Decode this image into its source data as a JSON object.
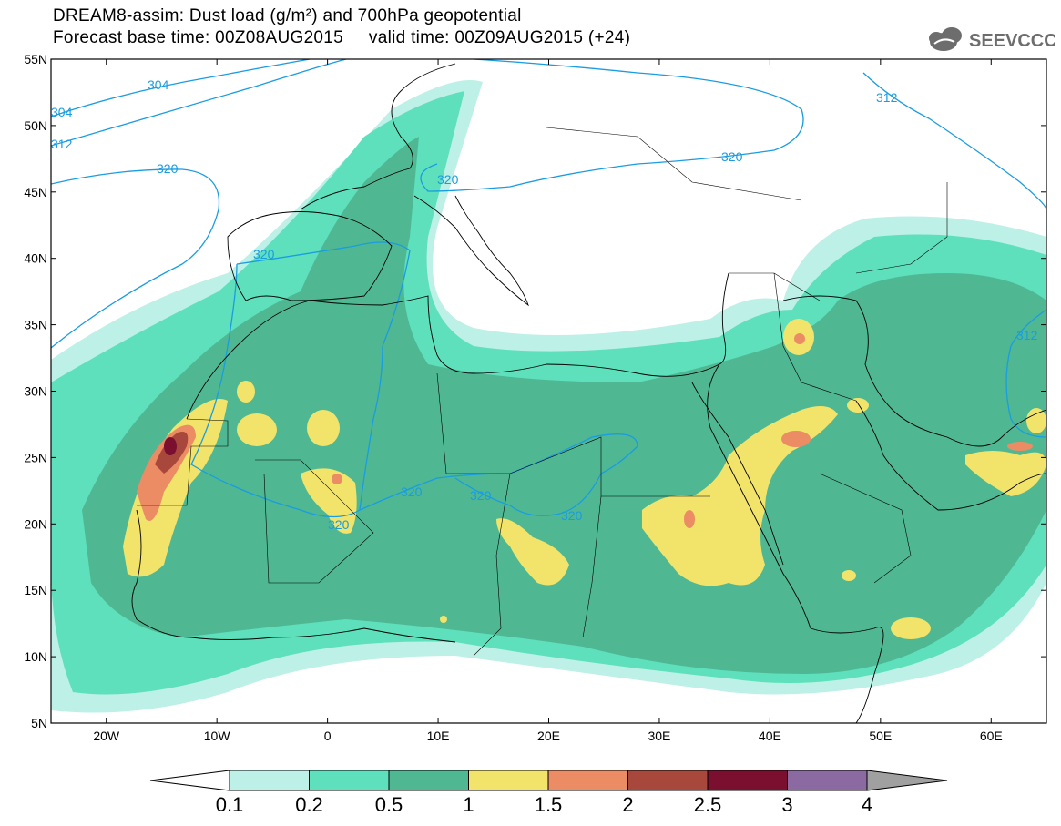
{
  "header": {
    "line1": "DREAM8-assim: Dust load (g/m²) and 700hPa geopotential",
    "line2": "Forecast base time: 00Z08AUG2015     valid time: 00Z09AUG2015 (+24)"
  },
  "logo": {
    "text": "SEEVCCC",
    "icon": "cloud-icon"
  },
  "map": {
    "lon_labels": [
      "20W",
      "10W",
      "0",
      "10E",
      "20E",
      "30E",
      "40E",
      "50E",
      "60E"
    ],
    "lat_labels": [
      "55N",
      "50N",
      "45N",
      "40N",
      "35N",
      "30N",
      "25N",
      "20N",
      "15N",
      "10N",
      "5N"
    ],
    "extent": {
      "lon": [
        -25,
        65
      ],
      "lat": [
        5,
        55
      ]
    },
    "contour_labels": [
      "304",
      "304",
      "312",
      "320",
      "320",
      "320",
      "320",
      "320",
      "320",
      "320",
      "320",
      "312",
      "312"
    ],
    "contour_color": "#1a9ce0"
  },
  "colorbar": {
    "labels": [
      "0.1",
      "0.2",
      "0.5",
      "1",
      "1.5",
      "2",
      "2.5",
      "3",
      "4"
    ],
    "colors": [
      "#bdf0e6",
      "#5ee0bc",
      "#4fb893",
      "#f2e46b",
      "#ec8c64",
      "#a8483c",
      "#7a0f2f",
      "#8a6aa0",
      "#a0a0a0"
    ]
  }
}
